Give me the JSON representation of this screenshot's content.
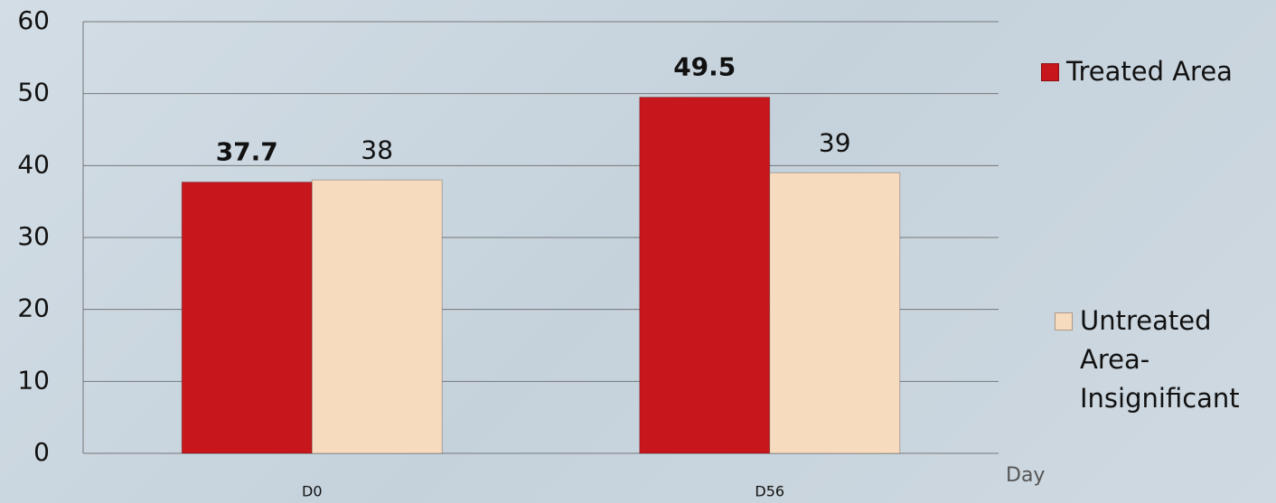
{
  "chart_data": {
    "type": "bar",
    "categories": [
      "D0",
      "D56"
    ],
    "x_label": "Day",
    "series": [
      {
        "name": "Treated Area",
        "color": "#c8161d",
        "values": [
          37.7,
          49.5
        ]
      },
      {
        "name": "Untreated Area-Insignificant",
        "color": "#f7dbbf",
        "values": [
          38,
          39
        ]
      }
    ],
    "ylim": [
      0,
      60
    ],
    "yticks": [
      0,
      10,
      20,
      30,
      40,
      50,
      60
    ],
    "grid": true,
    "legend": "right"
  }
}
